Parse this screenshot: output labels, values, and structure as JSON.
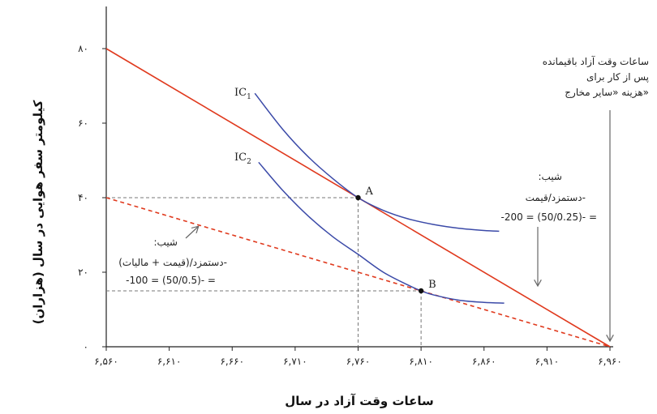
{
  "chart_data": {
    "type": "line",
    "xlabel": "ساعات وقت آزاد در سال",
    "ylabel": "کیلومتر سفر هوایی در سال (هزاران)",
    "xlim": [
      6560,
      6960
    ],
    "ylim": [
      0,
      80
    ],
    "x_ticks": [
      {
        "value": 6560,
        "label": "۶,۵۶۰"
      },
      {
        "value": 6610,
        "label": "۶,۶۱۰"
      },
      {
        "value": 6660,
        "label": "۶,۶۶۰"
      },
      {
        "value": 6710,
        "label": "۶,۷۱۰"
      },
      {
        "value": 6760,
        "label": "۶,۷۶۰"
      },
      {
        "value": 6810,
        "label": "۶,۸۱۰"
      },
      {
        "value": 6860,
        "label": "۶,۸۶۰"
      },
      {
        "value": 6910,
        "label": "۶,۹۱۰"
      },
      {
        "value": 6960,
        "label": "۶,۹۶۰"
      }
    ],
    "y_ticks": [
      {
        "value": 0,
        "label": "۰"
      },
      {
        "value": 20,
        "label": "۲۰"
      },
      {
        "value": 40,
        "label": "۴۰"
      },
      {
        "value": 60,
        "label": "۶۰"
      },
      {
        "value": 80,
        "label": "۸۰"
      }
    ],
    "budget_lines": [
      {
        "style": "solid",
        "color": "#e03a1e",
        "x": [
          6560,
          6960
        ],
        "y": [
          80,
          0
        ]
      },
      {
        "style": "dashed",
        "color": "#e03a1e",
        "x": [
          6560,
          6960
        ],
        "y": [
          40,
          0
        ]
      }
    ],
    "indifference_curves": [
      {
        "name": "IC",
        "subscript": "1",
        "color": "#3b4aa8",
        "x": [
          6678,
          6700,
          6720,
          6740,
          6760,
          6780,
          6800,
          6820,
          6840,
          6860,
          6872
        ],
        "y": [
          68.0,
          58.4,
          51.1,
          45.1,
          40.0,
          36.6,
          34.3,
          32.8,
          31.8,
          31.2,
          31.0
        ]
      },
      {
        "name": "IC",
        "subscript": "2",
        "color": "#3b4aa8",
        "x": [
          6681,
          6700,
          6720,
          6740,
          6760,
          6780,
          6800,
          6810,
          6820,
          6840,
          6860,
          6876
        ],
        "y": [
          49.5,
          42.0,
          35.2,
          29.5,
          24.8,
          20.0,
          16.5,
          15.0,
          13.9,
          12.5,
          11.9,
          11.7
        ]
      }
    ],
    "points": [
      {
        "label": "A",
        "x": 6760,
        "y": 40
      },
      {
        "label": "B",
        "x": 6810,
        "y": 15
      }
    ],
    "annotations": {
      "top_right": [
        "ساعات وقت آزاد باقیمانده",
        "پس از کار برای",
        "هزینه «سایر مخارج»"
      ],
      "slope_solid": [
        ":شیب",
        "دستمزد/قیمت-",
        "-200 = (50/0.25)- ="
      ],
      "slope_dashed": [
        ":شیب",
        "دستمزد/(قیمت + مالیات)-",
        "-100 = (50/0.5)- ="
      ]
    },
    "grid": false,
    "legend": "none"
  }
}
